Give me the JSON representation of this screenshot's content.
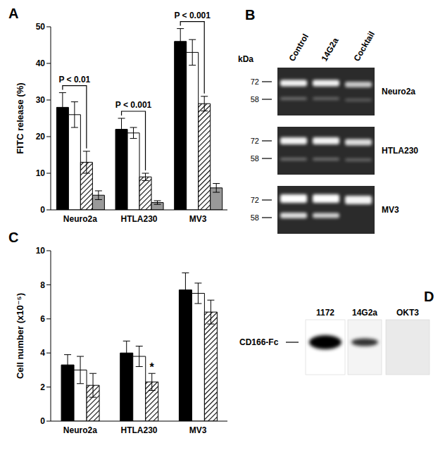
{
  "chart_data": [
    {
      "title": "A",
      "type": "bar",
      "categories": [
        "Neuro2a",
        "HTLA230",
        "MV3"
      ],
      "ylabel": "FITC release (%)",
      "ylim": [
        0,
        50
      ],
      "yticks": [
        0,
        10,
        20,
        30,
        40,
        50
      ],
      "series": [
        {
          "color": "#000000",
          "values": [
            28,
            22,
            46
          ],
          "errors": [
            4,
            3,
            3.5
          ]
        },
        {
          "color": "#ffffff",
          "values": [
            26,
            21,
            43
          ],
          "errors": [
            3.5,
            1.5,
            3.5
          ]
        },
        {
          "color": "hatched",
          "values": [
            13,
            9,
            29
          ],
          "errors": [
            3,
            1,
            2
          ]
        },
        {
          "color": "#999999",
          "values": [
            4,
            2,
            6
          ],
          "errors": [
            1.2,
            0.5,
            1.2
          ]
        }
      ],
      "annotations": [
        {
          "text": "P < 0.01",
          "category": "Neuro2a",
          "from": 0,
          "to": 2
        },
        {
          "text": "P < 0.001",
          "category": "HTLA230",
          "from": 0,
          "to": 2
        },
        {
          "text": "P < 0.001",
          "category": "MV3",
          "from": 0,
          "to": 2
        }
      ]
    },
    {
      "title": "C",
      "type": "bar",
      "categories": [
        "Neuro2a",
        "HTLA230",
        "MV3"
      ],
      "ylabel": "Cell number (x10⁻⁵)",
      "ylim": [
        0,
        10
      ],
      "yticks": [
        0,
        2,
        4,
        6,
        8,
        10
      ],
      "series": [
        {
          "color": "#000000",
          "values": [
            3.3,
            4,
            7.7
          ],
          "errors": [
            0.6,
            0.7,
            1.0
          ]
        },
        {
          "color": "#ffffff",
          "values": [
            3.0,
            3.8,
            7.5
          ],
          "errors": [
            0.8,
            0.6,
            0.6
          ]
        },
        {
          "color": "hatched",
          "values": [
            2.1,
            2.3,
            6.4
          ],
          "errors": [
            0.7,
            0.5,
            0.7
          ]
        }
      ],
      "annotations": [
        {
          "text": "*",
          "category": "HTLA230",
          "from": 2,
          "to": 2
        }
      ]
    }
  ],
  "blots": [
    {
      "title": "B",
      "lanes": [
        "Control",
        "14G2a",
        "Cocktail"
      ],
      "unit": "kDa",
      "markers": [
        72,
        58
      ],
      "rows": [
        "Neuro2a",
        "HTLA230",
        "MV3"
      ]
    },
    {
      "title": "D",
      "lanes": [
        "1172",
        "14G2a",
        "OKT3"
      ],
      "band": "CD166-Fc"
    }
  ]
}
